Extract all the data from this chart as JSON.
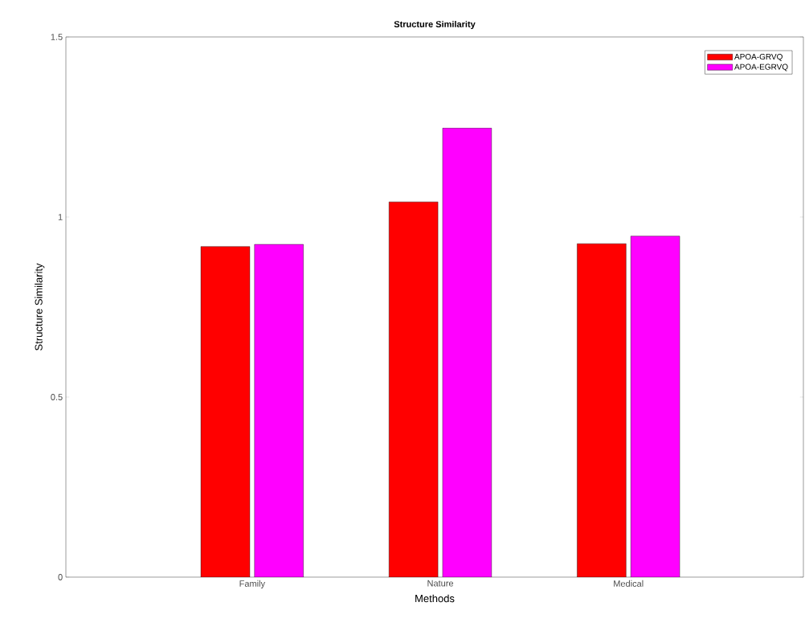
{
  "chart_data": {
    "type": "bar",
    "title": "Structure Similarity",
    "xlabel": "Methods",
    "ylabel": "Structure Similarity",
    "categories": [
      "Family",
      "Nature",
      "Medical"
    ],
    "series": [
      {
        "name": "APOA-GRVQ",
        "color": "#ff0000",
        "values": [
          0.918,
          1.042,
          0.926
        ]
      },
      {
        "name": "APOA-EGRVQ",
        "color": "#ff00ff",
        "values": [
          0.924,
          1.247,
          0.947
        ]
      }
    ],
    "ylim": [
      0,
      1.5
    ],
    "yticks": [
      0,
      0.5,
      1,
      1.5
    ],
    "legend": "top right",
    "grid": false
  }
}
